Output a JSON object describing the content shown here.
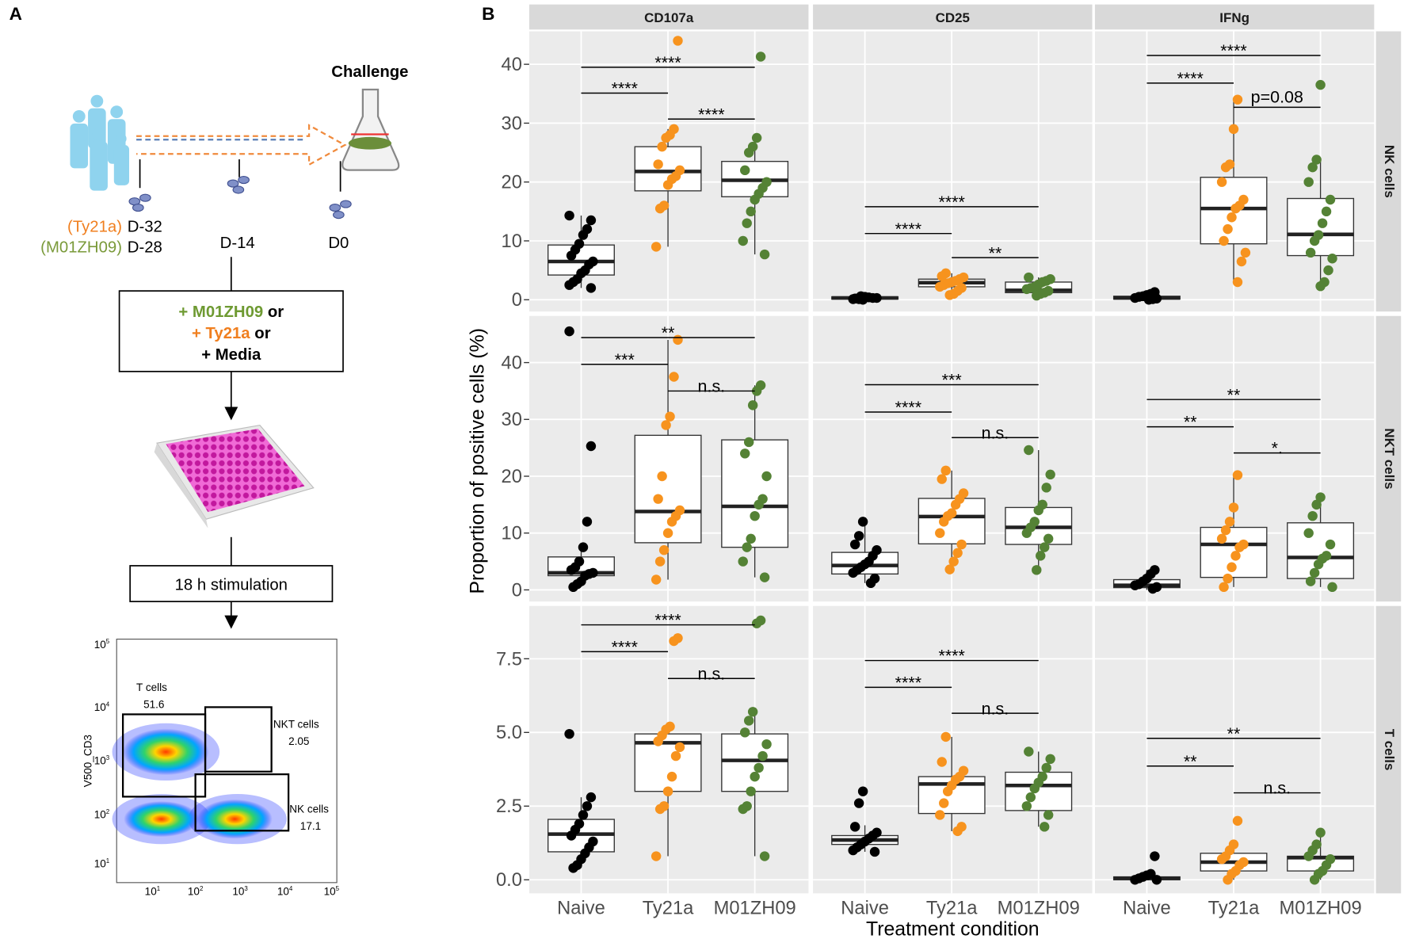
{
  "panel_labels": [
    "A",
    "B"
  ],
  "schematic": {
    "challenge": "Challenge",
    "timepoints": [
      {
        "vaccine": "(Ty21a)",
        "day": "D-32"
      },
      {
        "vaccine": "(M01ZH09)",
        "day": "D-28"
      },
      {
        "day": "D-14"
      },
      {
        "day": "D0"
      }
    ],
    "treatments": [
      {
        "name": "+ M01ZH09",
        "joiner": "or"
      },
      {
        "name": "+ Ty21a",
        "joiner": "or"
      },
      {
        "name": "+ Media"
      }
    ],
    "stimulation": "18 h stimulation",
    "flow_plot": {
      "y_label": "V500_CD3",
      "tick_base": "10",
      "tick_exponents": [
        1,
        2,
        3,
        4,
        5
      ],
      "gates": [
        {
          "name": "T cells",
          "value": 51.6
        },
        {
          "name": "NKT cells",
          "value": 2.05
        },
        {
          "name": "NK cells",
          "value": 17.1
        }
      ]
    }
  },
  "chart_data": {
    "type": "box",
    "xlabel": "Treatment condition",
    "ylabel": "Proportion of positive cells (%)",
    "categories": [
      "Naive",
      "Ty21a",
      "M01ZH09"
    ],
    "colors": [
      "#000000",
      "#f7931e",
      "#548235"
    ],
    "columns": [
      "CD107a",
      "CD25",
      "IFNg"
    ],
    "rows": [
      {
        "name": "NK cells",
        "ylim": [
          -2,
          45.6
        ],
        "yticks": [
          0,
          10,
          20,
          30,
          40
        ],
        "panels": [
          {
            "boxes": [
              {
                "min": 2,
                "q1": 4.2,
                "median": 6.5,
                "q3": 9.3,
                "max": 14.3,
                "points": [
                  14.3,
                  13.5,
                  12,
                  11,
                  9.5,
                  8.5,
                  7.5,
                  6.5,
                  6,
                  5,
                  4.5,
                  3.5,
                  3,
                  2.5,
                  2
                ]
              },
              {
                "min": 9,
                "q1": 18.5,
                "median": 21.8,
                "q3": 26,
                "max": 29,
                "points": [
                  44,
                  29,
                  28,
                  27.5,
                  26,
                  23,
                  22,
                  21,
                  20.5,
                  19.5,
                  16,
                  15.5,
                  9
                ]
              },
              {
                "min": 7.7,
                "q1": 17.5,
                "median": 20.3,
                "q3": 23.5,
                "max": 27.5,
                "points": [
                  41.3,
                  27.5,
                  26,
                  25,
                  22,
                  20,
                  19,
                  18,
                  17,
                  15,
                  13,
                  10,
                  7.7
                ]
              }
            ],
            "comparisons": [
              {
                "label": "****",
                "y": 35.1
              },
              {
                "label": "****",
                "y": 39.5
              },
              {
                "label": "****",
                "y": 30.7
              }
            ]
          },
          {
            "boxes": [
              {
                "min": 0,
                "q1": 0.1,
                "median": 0.3,
                "q3": 0.5,
                "max": 0.6,
                "points": [
                  0,
                  0.1,
                  0.2,
                  0.3,
                  0.3,
                  0.4,
                  0.5,
                  0.6,
                  0.2,
                  0.1
                ]
              },
              {
                "min": 0.8,
                "q1": 2.2,
                "median": 2.9,
                "q3": 3.5,
                "max": 4.5,
                "points": [
                  4.5,
                  4,
                  3.8,
                  3.5,
                  3.2,
                  3,
                  2.8,
                  2.5,
                  2.2,
                  2,
                  1.5,
                  1,
                  0.8
                ]
              },
              {
                "min": 0.5,
                "q1": 1.2,
                "median": 1.6,
                "q3": 3,
                "max": 3.8,
                "points": [
                  3.8,
                  3.5,
                  3.2,
                  3,
                  2.6,
                  2.2,
                  2,
                  1.8,
                  1.5,
                  1.2,
                  1,
                  0.7
                ]
              }
            ],
            "comparisons": [
              {
                "label": "****",
                "y": 11.25
              },
              {
                "label": "****",
                "y": 15.8
              },
              {
                "label": "**",
                "y": 7.15
              }
            ]
          },
          {
            "boxes": [
              {
                "min": 0,
                "q1": 0.1,
                "median": 0.3,
                "q3": 0.6,
                "max": 1.3,
                "points": [
                  1.3,
                  1,
                  0.8,
                  0.6,
                  0.5,
                  0.3,
                  0.2,
                  0.1,
                  0
                ]
              },
              {
                "min": 3,
                "q1": 9.5,
                "median": 15.5,
                "q3": 20.8,
                "max": 34,
                "points": [
                  34,
                  29,
                  23,
                  22.5,
                  20,
                  17,
                  16,
                  15.5,
                  14,
                  12,
                  10,
                  8,
                  6.5,
                  3
                ]
              },
              {
                "min": 2.3,
                "q1": 7.5,
                "median": 11.1,
                "q3": 17.2,
                "max": 23.8,
                "points": [
                  36.5,
                  23.8,
                  22.5,
                  20,
                  17,
                  15,
                  13,
                  11,
                  10,
                  8,
                  7,
                  5,
                  3,
                  2.3
                ]
              }
            ],
            "comparisons": [
              {
                "label": "****",
                "y": 36.8
              },
              {
                "label": "****",
                "y": 41.5
              },
              {
                "label": "p=0.08",
                "y": 32.7
              }
            ]
          }
        ]
      },
      {
        "name": "NKT cells",
        "ylim": [
          -2.05,
          48.2
        ],
        "yticks": [
          0,
          10,
          20,
          30,
          40
        ],
        "panels": [
          {
            "boxes": [
              {
                "min": 0.5,
                "q1": 2.5,
                "median": 3,
                "q3": 5.8,
                "max": 7.5,
                "points": [
                  45.5,
                  25.3,
                  12,
                  7.5,
                  5,
                  4,
                  3.5,
                  3,
                  2.8,
                  2.5,
                  1.5,
                  1,
                  0.5
                ]
              },
              {
                "min": 1.8,
                "q1": 8.3,
                "median": 13.8,
                "q3": 27.2,
                "max": 44,
                "points": [
                  44,
                  37.5,
                  30.5,
                  29,
                  20,
                  16,
                  14,
                  13,
                  12,
                  10,
                  7,
                  5,
                  1.8
                ]
              },
              {
                "min": 2.2,
                "q1": 7.5,
                "median": 14.7,
                "q3": 26.4,
                "max": 36,
                "points": [
                  36,
                  35,
                  32.5,
                  26,
                  24,
                  20,
                  16,
                  15,
                  13,
                  9,
                  7.5,
                  5,
                  2.2
                ]
              }
            ],
            "comparisons": [
              {
                "label": "***",
                "y": 39.7
              },
              {
                "label": "**",
                "y": 44.4
              },
              {
                "label": "n.s.",
                "y": 35
              }
            ]
          },
          {
            "boxes": [
              {
                "min": 1.2,
                "q1": 2.8,
                "median": 4.3,
                "q3": 6.6,
                "max": 12,
                "points": [
                  12,
                  9.5,
                  8,
                  7,
                  6,
                  5,
                  4.5,
                  4,
                  3.5,
                  3,
                  2,
                  1.2
                ]
              },
              {
                "min": 3.6,
                "q1": 8.1,
                "median": 12.9,
                "q3": 16.1,
                "max": 21,
                "points": [
                  21,
                  19.5,
                  17,
                  16,
                  15,
                  13.5,
                  13,
                  12,
                  10,
                  8,
                  6.5,
                  5,
                  3.6
                ]
              },
              {
                "min": 3.5,
                "q1": 8,
                "median": 11,
                "q3": 14.5,
                "max": 24.6,
                "points": [
                  24.6,
                  20.3,
                  18,
                  15,
                  14,
                  12,
                  11,
                  10,
                  9,
                  7.5,
                  6,
                  3.5
                ]
              }
            ],
            "comparisons": [
              {
                "label": "****",
                "y": 31.3
              },
              {
                "label": "***",
                "y": 36.1
              },
              {
                "label": "n.s.",
                "y": 26.8
              }
            ]
          },
          {
            "boxes": [
              {
                "min": 0,
                "q1": 0.4,
                "median": 0.8,
                "q3": 1.8,
                "max": 3.5,
                "points": [
                  3.5,
                  2.8,
                  2,
                  1.5,
                  1,
                  0.8,
                  0.5,
                  0.2
                ]
              },
              {
                "min": 0.5,
                "q1": 2.2,
                "median": 8,
                "q3": 11,
                "max": 20.2,
                "points": [
                  20.2,
                  14.5,
                  12,
                  10.5,
                  9,
                  8,
                  7.5,
                  6,
                  4,
                  2,
                  0.5
                ]
              },
              {
                "min": 0.5,
                "q1": 2,
                "median": 5.7,
                "q3": 11.8,
                "max": 16.3,
                "points": [
                  16.3,
                  15,
                  13,
                  10,
                  8,
                  6,
                  5.5,
                  4.5,
                  3,
                  1.5,
                  0.5
                ]
              }
            ],
            "comparisons": [
              {
                "label": "**",
                "y": 28.7
              },
              {
                "label": "**",
                "y": 33.5
              },
              {
                "label": "*.",
                "y": 24.1
              }
            ]
          }
        ]
      },
      {
        "name": "T cells",
        "ylim": [
          -0.46,
          9.29
        ],
        "yticks": [
          {
            "value": 0,
            "label": "0.0"
          },
          {
            "value": 2.5,
            "label": "2.5"
          },
          {
            "value": 5,
            "label": "5.0"
          },
          {
            "value": 7.5,
            "label": "7.5"
          }
        ],
        "panels": [
          {
            "boxes": [
              {
                "min": 0.4,
                "q1": 0.95,
                "median": 1.55,
                "q3": 2.05,
                "max": 2.8,
                "points": [
                  4.95,
                  2.8,
                  2.5,
                  2.2,
                  1.9,
                  1.7,
                  1.5,
                  1.3,
                  1.1,
                  0.9,
                  0.7,
                  0.5,
                  0.4
                ]
              },
              {
                "min": 0.8,
                "q1": 3,
                "median": 4.65,
                "q3": 4.95,
                "max": 5.2,
                "points": [
                  8.2,
                  8.1,
                  5.2,
                  5.1,
                  4.9,
                  4.7,
                  4.5,
                  4.2,
                  3.5,
                  3,
                  2.5,
                  2.4,
                  0.8
                ]
              },
              {
                "min": 0.8,
                "q1": 3,
                "median": 4.05,
                "q3": 4.95,
                "max": 5.7,
                "points": [
                  8.8,
                  8.7,
                  5.7,
                  5.4,
                  5,
                  4.6,
                  4.2,
                  3.8,
                  3.5,
                  3,
                  2.5,
                  2.4,
                  0.8
                ]
              }
            ],
            "comparisons": [
              {
                "label": "****",
                "y": 7.74
              },
              {
                "label": "****",
                "y": 8.65
              },
              {
                "label": "n.s.",
                "y": 6.83
              }
            ]
          },
          {
            "boxes": [
              {
                "min": 0.95,
                "q1": 1.2,
                "median": 1.35,
                "q3": 1.5,
                "max": 1.85,
                "points": [
                  3,
                  2.6,
                  1.8,
                  1.6,
                  1.5,
                  1.4,
                  1.3,
                  1.2,
                  1.1,
                  1,
                  0.95
                ]
              },
              {
                "min": 1.65,
                "q1": 2.25,
                "median": 3.25,
                "q3": 3.5,
                "max": 4.85,
                "points": [
                  4.85,
                  4,
                  3.7,
                  3.5,
                  3.4,
                  3.2,
                  3,
                  2.6,
                  2.2,
                  1.8,
                  1.65
                ]
              },
              {
                "min": 1.8,
                "q1": 2.35,
                "median": 3.2,
                "q3": 3.65,
                "max": 4.35,
                "points": [
                  4.35,
                  4.1,
                  3.8,
                  3.5,
                  3.3,
                  3.1,
                  2.8,
                  2.5,
                  2.2,
                  1.8
                ]
              }
            ],
            "comparisons": [
              {
                "label": "****",
                "y": 6.53
              },
              {
                "label": "****",
                "y": 7.44
              },
              {
                "label": "n.s.",
                "y": 5.65
              }
            ]
          },
          {
            "boxes": [
              {
                "min": 0,
                "q1": 0,
                "median": 0.05,
                "q3": 0.1,
                "max": 0.2,
                "points": [
                  0.8,
                  0.2,
                  0.15,
                  0.1,
                  0.05,
                  0,
                  0
                ]
              },
              {
                "min": 0,
                "q1": 0.3,
                "median": 0.6,
                "q3": 0.9,
                "max": 1.2,
                "points": [
                  2,
                  1.2,
                  1,
                  0.8,
                  0.7,
                  0.6,
                  0.5,
                  0.3,
                  0.2,
                  0
                ]
              },
              {
                "min": 0,
                "q1": 0.3,
                "median": 0.75,
                "q3": 0.8,
                "max": 1.6,
                "points": [
                  1.6,
                  1.2,
                  1,
                  0.8,
                  0.7,
                  0.5,
                  0.3,
                  0.2,
                  0
                ]
              }
            ],
            "comparisons": [
              {
                "label": "**",
                "y": 3.86
              },
              {
                "label": "**",
                "y": 4.8
              },
              {
                "label": "n.s.",
                "y": 2.95
              }
            ]
          }
        ]
      }
    ]
  }
}
